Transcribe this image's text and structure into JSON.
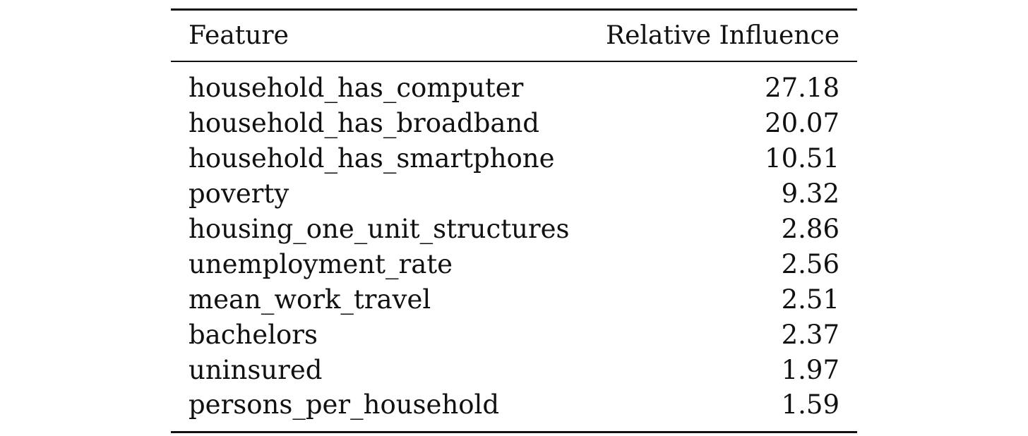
{
  "table": {
    "headers": {
      "feature": "Feature",
      "influence": "Relative Influence"
    },
    "rows": [
      {
        "feature": "household_has_computer",
        "influence": "27.18"
      },
      {
        "feature": "household_has_broadband",
        "influence": "20.07"
      },
      {
        "feature": "household_has_smartphone",
        "influence": "10.51"
      },
      {
        "feature": "poverty",
        "influence": "9.32"
      },
      {
        "feature": "housing_one_unit_structures",
        "influence": "2.86"
      },
      {
        "feature": "unemployment_rate",
        "influence": "2.56"
      },
      {
        "feature": "mean_work_travel",
        "influence": "2.51"
      },
      {
        "feature": "bachelors",
        "influence": "2.37"
      },
      {
        "feature": "uninsured",
        "influence": "1.97"
      },
      {
        "feature": "persons_per_household",
        "influence": "1.59"
      }
    ]
  }
}
